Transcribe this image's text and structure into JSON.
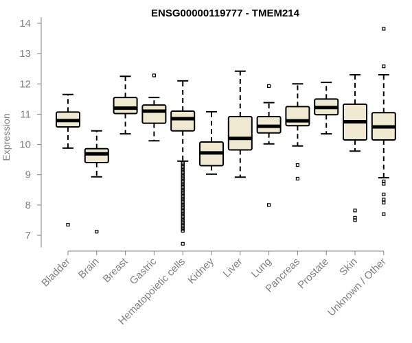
{
  "chart_data": {
    "type": "boxplot",
    "title": "ENSG00000119777 - TMEM214",
    "xlabel": "",
    "ylabel": "Expression",
    "ylim": [
      6.6,
      14.2
    ],
    "yticks": [
      7,
      8,
      9,
      10,
      11,
      12,
      13,
      14
    ],
    "grid": false,
    "colors": {
      "box_fill": "#efe9d2",
      "box_stroke": "#000000",
      "median": "#000000",
      "axis": "#808080",
      "tick_text": "#808080"
    },
    "categories": [
      "Bladder",
      "Brain",
      "Breast",
      "Gastric",
      "Hematopoietic cells",
      "Kidney",
      "Liver",
      "Lung",
      "Pancreas",
      "Prostate",
      "Skin",
      "Unknown / Other"
    ],
    "boxes": [
      {
        "whisker_low": 9.88,
        "q1": 10.58,
        "median": 10.79,
        "q3": 11.07,
        "whisker_high": 11.65,
        "outliers": [
          7.35
        ]
      },
      {
        "whisker_low": 8.93,
        "q1": 9.4,
        "median": 9.69,
        "q3": 9.86,
        "whisker_high": 10.45,
        "outliers": [
          7.12
        ]
      },
      {
        "whisker_low": 10.35,
        "q1": 11.02,
        "median": 11.2,
        "q3": 11.55,
        "whisker_high": 12.25,
        "outliers": []
      },
      {
        "whisker_low": 10.12,
        "q1": 10.7,
        "median": 11.1,
        "q3": 11.3,
        "whisker_high": 11.55,
        "outliers": [
          12.28
        ]
      },
      {
        "whisker_low": 9.45,
        "q1": 10.45,
        "median": 10.85,
        "q3": 11.1,
        "whisker_high": 12.1,
        "outliers": [
          9.4,
          9.35,
          9.3,
          9.25,
          9.2,
          9.15,
          9.1,
          9.05,
          9.0,
          8.95,
          8.9,
          8.85,
          8.8,
          8.75,
          8.7,
          8.65,
          8.6,
          8.55,
          8.5,
          8.45,
          8.4,
          8.35,
          8.3,
          8.25,
          8.2,
          8.15,
          8.1,
          8.05,
          8.0,
          7.95,
          7.9,
          7.85,
          7.8,
          7.75,
          7.7,
          7.65,
          7.6,
          7.55,
          7.5,
          7.45,
          7.4,
          7.35,
          7.3,
          7.25,
          7.2,
          7.15,
          6.72
        ]
      },
      {
        "whisker_low": 9.02,
        "q1": 9.3,
        "median": 9.72,
        "q3": 10.08,
        "whisker_high": 11.08,
        "outliers": []
      },
      {
        "whisker_low": 8.92,
        "q1": 9.82,
        "median": 10.2,
        "q3": 10.92,
        "whisker_high": 12.42,
        "outliers": []
      },
      {
        "whisker_low": 10.02,
        "q1": 10.38,
        "median": 10.6,
        "q3": 10.92,
        "whisker_high": 11.38,
        "outliers": [
          11.93,
          8.0
        ]
      },
      {
        "whisker_low": 9.95,
        "q1": 10.62,
        "median": 10.78,
        "q3": 11.25,
        "whisker_high": 12.0,
        "outliers": [
          9.32,
          8.87
        ]
      },
      {
        "whisker_low": 10.35,
        "q1": 10.98,
        "median": 11.22,
        "q3": 11.5,
        "whisker_high": 12.05,
        "outliers": []
      },
      {
        "whisker_low": 9.78,
        "q1": 10.15,
        "median": 10.75,
        "q3": 11.33,
        "whisker_high": 12.3,
        "outliers": [
          7.82,
          7.58,
          7.5
        ]
      },
      {
        "whisker_low": 8.9,
        "q1": 10.15,
        "median": 10.58,
        "q3": 11.05,
        "whisker_high": 12.3,
        "outliers": [
          13.82,
          12.58,
          8.78,
          8.7,
          8.35,
          8.18,
          8.08,
          7.7
        ]
      }
    ]
  }
}
